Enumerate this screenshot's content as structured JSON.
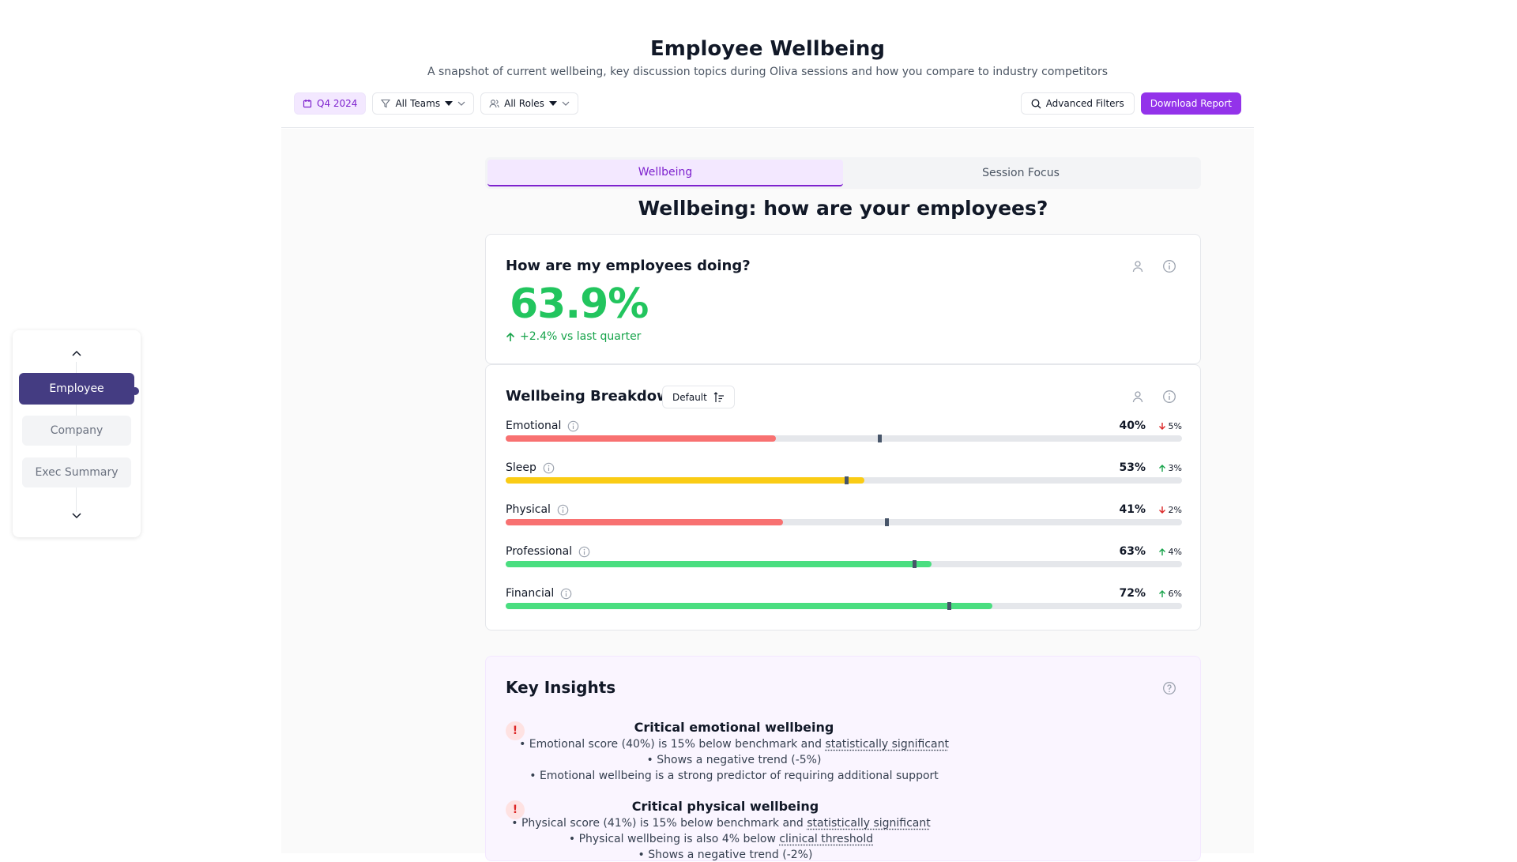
{
  "header": {
    "title": "Employee Wellbeing",
    "subtitle": "A snapshot of current wellbeing, key discussion topics during Oliva sessions and how you compare to industry competitors",
    "period": "Q4 2024",
    "teams_filter": "All Teams",
    "roles_filter": "All Roles",
    "advanced_filters": "Advanced Filters",
    "download_report": "Download Report"
  },
  "sidenav": {
    "items": [
      {
        "label": "Employee",
        "active": true
      },
      {
        "label": "Company",
        "active": false
      },
      {
        "label": "Exec Summary",
        "active": false
      }
    ]
  },
  "tabs": [
    {
      "label": "Wellbeing",
      "active": true
    },
    {
      "label": "Session Focus",
      "active": false
    }
  ],
  "section_heading": "Wellbeing: how are your employees?",
  "overall": {
    "title": "How are my employees doing?",
    "score": "63.9%",
    "trend": "+2.4% vs last quarter"
  },
  "breakdown": {
    "title": "Wellbeing Breakdown",
    "sort_label": "Default",
    "metrics": [
      {
        "label": "Emotional",
        "pct": "40%",
        "value": 40,
        "benchmark": 55.3,
        "change": "5%",
        "direction": "down",
        "color": "#f87171"
      },
      {
        "label": "Sleep",
        "pct": "53%",
        "value": 53,
        "benchmark": 50.3,
        "change": "3%",
        "direction": "up",
        "color": "#facc15"
      },
      {
        "label": "Physical",
        "pct": "41%",
        "value": 41,
        "benchmark": 56.3,
        "change": "2%",
        "direction": "down",
        "color": "#f87171"
      },
      {
        "label": "Professional",
        "pct": "63%",
        "value": 63,
        "benchmark": 60.4,
        "change": "4%",
        "direction": "up",
        "color": "#4ade80"
      },
      {
        "label": "Financial",
        "pct": "72%",
        "value": 72,
        "benchmark": 65.5,
        "change": "6%",
        "direction": "up",
        "color": "#4ade80"
      }
    ]
  },
  "insights": {
    "title": "Key Insights",
    "items": [
      {
        "heading": "Critical emotional wellbeing",
        "line1_pre": "• Emotional score (40%) is 15% below benchmark and ",
        "line1_link": "statistically significant",
        "line2": "• Shows a negative trend (-5%)",
        "line3": "• Emotional wellbeing is a strong predictor of requiring additional support"
      },
      {
        "heading": "Critical physical wellbeing",
        "line1_pre": "• Physical score (41%) is 15% below benchmark and ",
        "line1_link": "statistically significant",
        "line2_pre": "• Physical wellbeing is also 4% below ",
        "line2_link": "clinical threshold",
        "line3": "• Shows a negative trend (-2%)"
      }
    ]
  }
}
